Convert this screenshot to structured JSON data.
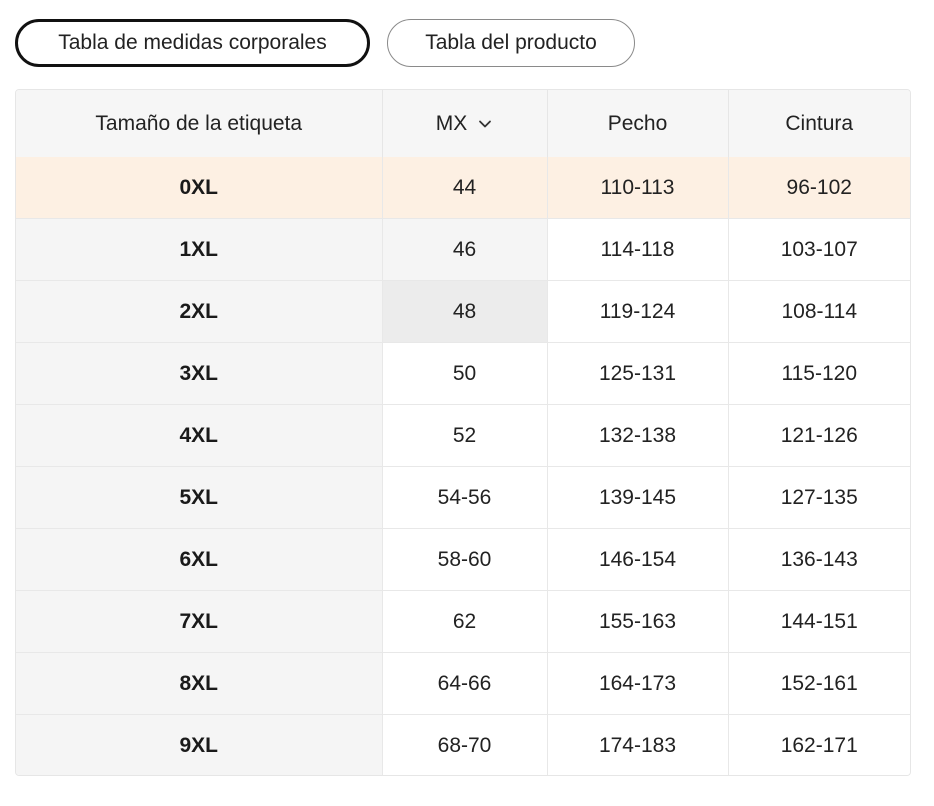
{
  "tabs": [
    {
      "label": "Tabla de medidas corporales",
      "active": true
    },
    {
      "label": "Tabla del producto",
      "active": false
    }
  ],
  "table": {
    "headers": {
      "label": "Tamaño de la etiqueta",
      "region": "MX",
      "region_icon": "chevron-down-icon",
      "chest": "Pecho",
      "waist": "Cintura"
    },
    "rows": [
      {
        "label": "0XL",
        "mx": "44",
        "chest": "110-113",
        "waist": "96-102"
      },
      {
        "label": "1XL",
        "mx": "46",
        "chest": "114-118",
        "waist": "103-107"
      },
      {
        "label": "2XL",
        "mx": "48",
        "chest": "119-124",
        "waist": "108-114"
      },
      {
        "label": "3XL",
        "mx": "50",
        "chest": "125-131",
        "waist": "115-120"
      },
      {
        "label": "4XL",
        "mx": "52",
        "chest": "132-138",
        "waist": "121-126"
      },
      {
        "label": "5XL",
        "mx": "54-56",
        "chest": "139-145",
        "waist": "127-135"
      },
      {
        "label": "6XL",
        "mx": "58-60",
        "chest": "146-154",
        "waist": "136-143"
      },
      {
        "label": "7XL",
        "mx": "62",
        "chest": "155-163",
        "waist": "144-151"
      },
      {
        "label": "8XL",
        "mx": "64-66",
        "chest": "164-173",
        "waist": "152-161"
      },
      {
        "label": "9XL",
        "mx": "68-70",
        "chest": "174-183",
        "waist": "162-171"
      }
    ]
  },
  "colors": {
    "highlight_row": "#fdf0e3",
    "label_column": "#f5f5f5",
    "hover_cell": "#ececec",
    "active_tab_border": "#111111"
  }
}
